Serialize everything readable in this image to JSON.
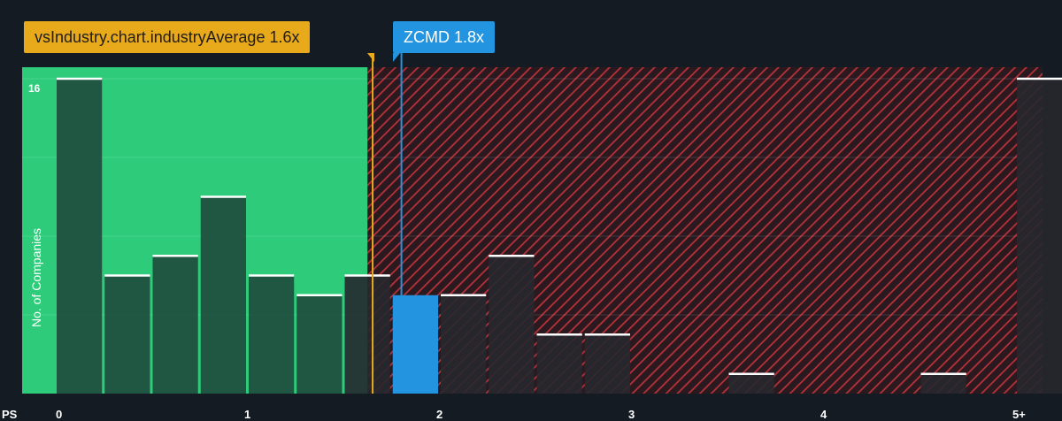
{
  "chart_data": {
    "type": "bar",
    "xlabel": "PS",
    "ylabel": "No. of Companies",
    "x_ticks": [
      "0",
      "1",
      "2",
      "3",
      "4",
      "5+"
    ],
    "y_ticks": [
      16
    ],
    "ylim": [
      0,
      16.2
    ],
    "bin_width": 0.25,
    "bins": [
      {
        "x_start": 0.0,
        "value": 16
      },
      {
        "x_start": 0.25,
        "value": 6
      },
      {
        "x_start": 0.5,
        "value": 7
      },
      {
        "x_start": 0.75,
        "value": 10
      },
      {
        "x_start": 1.0,
        "value": 6
      },
      {
        "x_start": 1.25,
        "value": 5
      },
      {
        "x_start": 1.5,
        "value": 6
      },
      {
        "x_start": 1.75,
        "value": 5
      },
      {
        "x_start": 2.0,
        "value": 5
      },
      {
        "x_start": 2.25,
        "value": 7
      },
      {
        "x_start": 2.5,
        "value": 3
      },
      {
        "x_start": 2.75,
        "value": 3
      },
      {
        "x_start": 3.5,
        "value": 1
      },
      {
        "x_start": 4.5,
        "value": 1
      },
      {
        "x_start": 5.0,
        "value": 16
      }
    ],
    "highlight_bin_x_start": 1.75,
    "industry_average": {
      "label": "vsIndustry.chart.industryAverage 1.6x",
      "value": 1.65
    },
    "company": {
      "label": "ZCMD 1.8x",
      "value": 1.8
    },
    "fair_region_end": 1.6,
    "colors": {
      "background": "#151b23",
      "fair_region": "#2ecc7a",
      "overvalued_hatch": "#b8323a",
      "bar_fill": "#1e4a3c",
      "bar_fill_over": "#26282e",
      "bar_top": "#ffffff",
      "highlight": "#2394e0",
      "industry_line": "#e8aa1b",
      "company_line": "#2394e0"
    }
  }
}
